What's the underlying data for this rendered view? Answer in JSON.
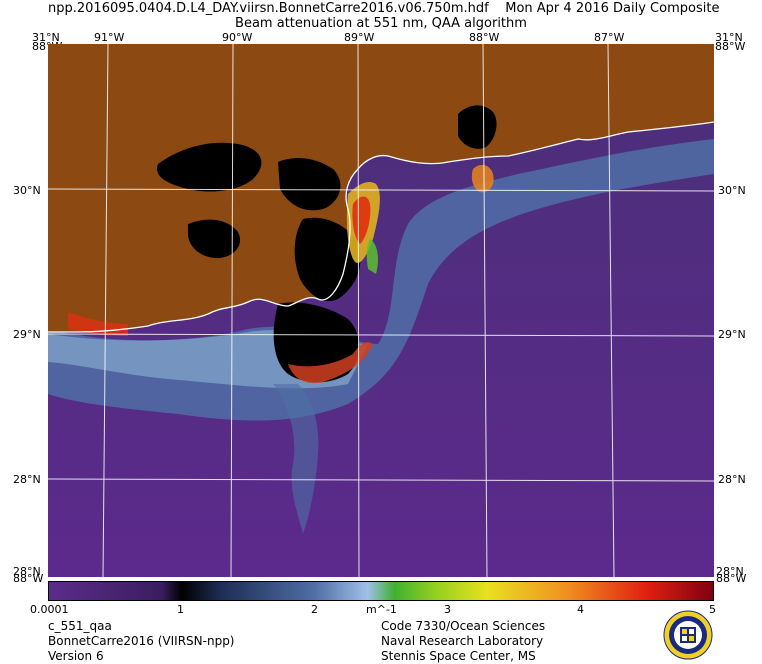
{
  "header": {
    "filename": "npp.2016095.0404.D.L4_DAY.viirsn.BonnetCarre2016.v06.750m.hdf",
    "date": "Mon Apr  4 2016 Daily Composite",
    "product": "Beam attenuation at 551 nm, QAA algorithm"
  },
  "map": {
    "top_lon_labels": [
      "91°W",
      "90°W",
      "89°W",
      "88°W",
      "87°W"
    ],
    "corner_top_left": "31°N",
    "corner_top_left_overlap": "88°W",
    "corner_top_right": "31°N",
    "corner_top_right_overlap": "88°W",
    "corner_bottom_left": "28°N",
    "corner_bottom_left_overlap": "88°W",
    "corner_bottom_right": "28°N",
    "corner_bottom_right_overlap": "88°W",
    "lat_labels": [
      "30°N",
      "29°N",
      "28°N"
    ],
    "colors": {
      "land": "#8c4a12",
      "water_deep": "#5c2a8c",
      "water_mid": "#4a2f78",
      "turbid_low": "#4f6fa6",
      "turbid_mid": "#7fa0c8",
      "black": "#000000",
      "coast": "#ffffff"
    }
  },
  "colorbar": {
    "tick_labels": [
      "0.0001",
      "1",
      "2",
      "3",
      "4",
      "5"
    ],
    "unit": "m^-1"
  },
  "footer": {
    "left": [
      "c_551_qaa",
      "BonnetCarre2016 (VIIRSN-npp)",
      "Version 6"
    ],
    "right": [
      "Code 7330/Ocean Sciences",
      "Naval Research Laboratory",
      "Stennis Space Center, MS"
    ]
  },
  "logo": {
    "icon": "nrl-seal-icon"
  }
}
